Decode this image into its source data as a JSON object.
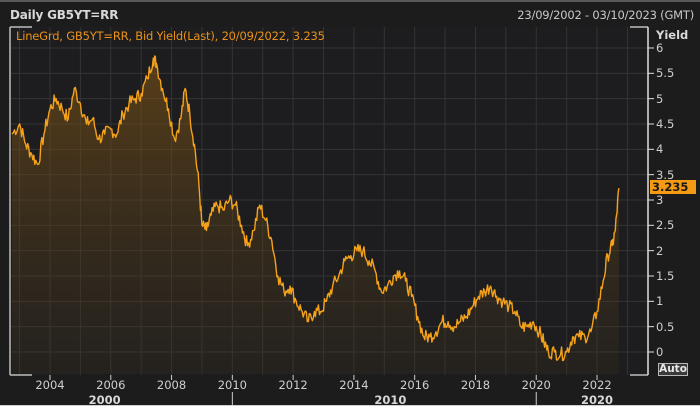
{
  "header": {
    "title": "Daily GB5YT=RR",
    "date_range": "23/09/2002 - 03/10/2023 (GMT)"
  },
  "legend": {
    "text": "LineGrd, GB5YT=RR, Bid Yield(Last), 20/09/2022, 3.235"
  },
  "y_axis": {
    "label": "Yield",
    "ticks": [
      "6",
      "5.5",
      "5",
      "4.5",
      "4",
      "3.5",
      "3",
      "2.5",
      "2",
      "1.5",
      "1",
      "0.5",
      "0"
    ],
    "last_value_badge": "3.235",
    "auto_button": "Auto"
  },
  "x_axis": {
    "ticks": [
      "2004",
      "2006",
      "2008",
      "2010",
      "2012",
      "2014",
      "2016",
      "2018",
      "2020",
      "2022"
    ],
    "decades": [
      "2000",
      "2010",
      "2020"
    ]
  },
  "colors": {
    "line": "#f5a21a",
    "badge": "#f59a12",
    "background": "#1c1c1c",
    "grid": "#343434"
  },
  "chart_data": {
    "type": "area",
    "title": "Daily GB5YT=RR",
    "subtitle": "LineGrd, GB5YT=RR, Bid Yield(Last), 20/09/2022, 3.235",
    "xlabel": "",
    "ylabel": "Yield",
    "ylim": [
      -0.3,
      6.3
    ],
    "xlim": [
      "23/09/2002",
      "03/10/2023"
    ],
    "grid": true,
    "legend_position": "top-left",
    "series": [
      {
        "name": "GB5YT=RR Bid Yield(Last)",
        "x": [
          2002.75,
          2003.0,
          2003.2,
          2003.4,
          2003.6,
          2003.8,
          2004.0,
          2004.2,
          2004.4,
          2004.6,
          2004.8,
          2005.0,
          2005.2,
          2005.4,
          2005.6,
          2005.8,
          2006.0,
          2006.2,
          2006.4,
          2006.6,
          2006.8,
          2007.0,
          2007.2,
          2007.4,
          2007.5,
          2007.7,
          2007.9,
          2008.1,
          2008.3,
          2008.45,
          2008.6,
          2008.75,
          2008.9,
          2009.0,
          2009.15,
          2009.3,
          2009.5,
          2009.7,
          2009.9,
          2010.1,
          2010.3,
          2010.5,
          2010.7,
          2010.9,
          2011.1,
          2011.3,
          2011.5,
          2011.7,
          2011.9,
          2012.1,
          2012.3,
          2012.5,
          2012.7,
          2012.9,
          2013.1,
          2013.3,
          2013.5,
          2013.7,
          2013.9,
          2014.1,
          2014.3,
          2014.5,
          2014.7,
          2014.9,
          2015.1,
          2015.3,
          2015.5,
          2015.7,
          2015.9,
          2016.1,
          2016.3,
          2016.5,
          2016.7,
          2016.9,
          2017.1,
          2017.3,
          2017.5,
          2017.7,
          2017.9,
          2018.1,
          2018.3,
          2018.5,
          2018.7,
          2018.9,
          2019.1,
          2019.3,
          2019.5,
          2019.7,
          2019.9,
          2020.1,
          2020.25,
          2020.4,
          2020.6,
          2020.8,
          2021.0,
          2021.2,
          2021.4,
          2021.6,
          2021.8,
          2022.0,
          2022.2,
          2022.35,
          2022.5,
          2022.6,
          2022.72
        ],
        "values": [
          4.3,
          4.5,
          4.1,
          3.9,
          3.7,
          4.3,
          4.8,
          5.0,
          4.8,
          4.6,
          5.2,
          4.9,
          4.5,
          4.6,
          4.2,
          4.3,
          4.4,
          4.3,
          4.7,
          4.9,
          5.0,
          5.1,
          5.4,
          5.8,
          5.7,
          5.2,
          4.8,
          4.2,
          4.6,
          5.2,
          4.7,
          4.1,
          3.3,
          2.5,
          2.4,
          2.7,
          2.9,
          2.8,
          3.0,
          2.9,
          2.5,
          2.1,
          2.4,
          2.9,
          2.6,
          2.2,
          1.5,
          1.2,
          1.3,
          1.0,
          0.8,
          0.6,
          0.8,
          0.8,
          1.0,
          1.3,
          1.5,
          1.8,
          1.9,
          2.0,
          2.0,
          1.8,
          1.6,
          1.2,
          1.3,
          1.5,
          1.6,
          1.4,
          1.1,
          0.7,
          0.3,
          0.3,
          0.4,
          0.6,
          0.6,
          0.5,
          0.6,
          0.7,
          0.9,
          1.1,
          1.2,
          1.3,
          1.1,
          1.0,
          0.9,
          0.8,
          0.5,
          0.5,
          0.6,
          0.4,
          0.2,
          0.0,
          0.0,
          -0.05,
          0.0,
          0.3,
          0.3,
          0.3,
          0.4,
          0.8,
          1.4,
          1.9,
          2.1,
          2.4,
          3.235
        ]
      }
    ]
  }
}
